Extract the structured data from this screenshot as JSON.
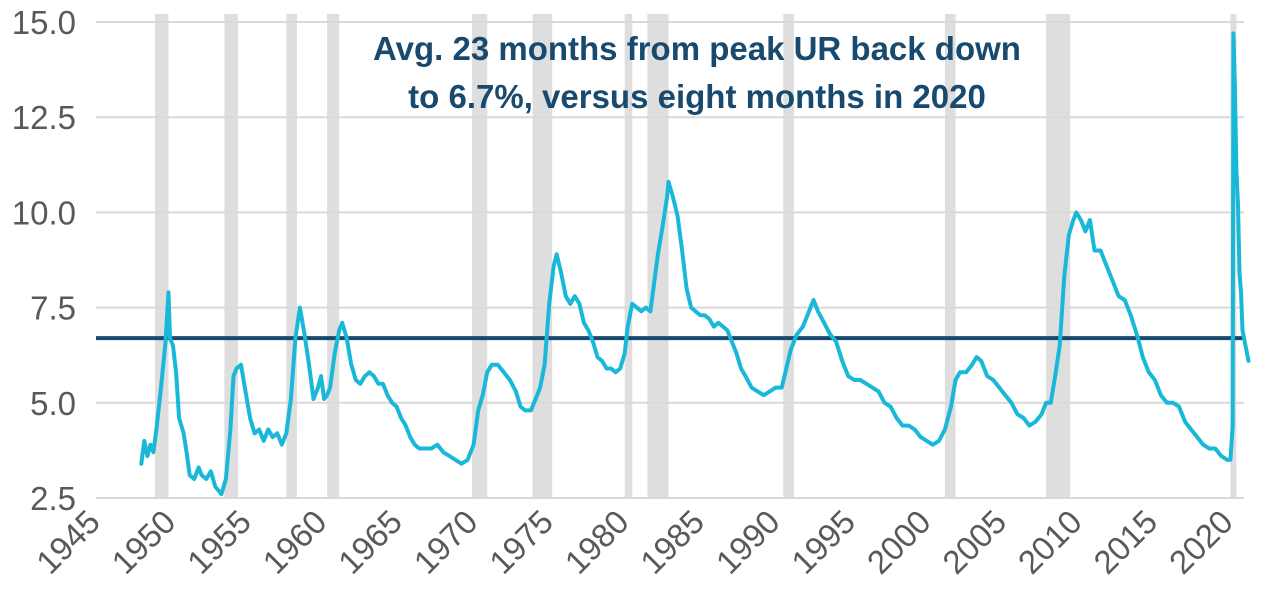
{
  "chart_data": {
    "type": "line",
    "title": "",
    "xlabel": "",
    "ylabel": "",
    "annotation": {
      "line1": "Avg. 23 months from peak UR back down",
      "line2": "to 6.7%, versus eight months in 2020"
    },
    "xlim": [
      1945,
      2021
    ],
    "ylim": [
      2.5,
      15.0
    ],
    "x_ticks": [
      "1945",
      "1950",
      "1955",
      "1960",
      "1965",
      "1970",
      "1975",
      "1980",
      "1985",
      "1990",
      "1995",
      "2000",
      "2005",
      "2010",
      "2015",
      "2020"
    ],
    "y_ticks": [
      "2.5",
      "5.0",
      "7.5",
      "10.0",
      "12.5",
      "15.0"
    ],
    "grid": "horizontal",
    "reference_line": {
      "value": 6.7,
      "color": "#174a6e"
    },
    "recessions": [
      [
        1948.9,
        1949.8
      ],
      [
        1953.5,
        1954.4
      ],
      [
        1957.6,
        1958.3
      ],
      [
        1960.3,
        1961.1
      ],
      [
        1969.9,
        1970.9
      ],
      [
        1973.9,
        1975.2
      ],
      [
        1980.0,
        1980.5
      ],
      [
        1981.5,
        1982.9
      ],
      [
        1990.5,
        1991.2
      ],
      [
        2001.2,
        2001.9
      ],
      [
        2007.9,
        2009.5
      ],
      [
        2020.1,
        2020.4
      ]
    ],
    "series": [
      {
        "color": "#1ab8d8",
        "points": [
          [
            1948.0,
            3.4
          ],
          [
            1948.2,
            4.0
          ],
          [
            1948.4,
            3.6
          ],
          [
            1948.6,
            3.9
          ],
          [
            1948.8,
            3.7
          ],
          [
            1949.0,
            4.3
          ],
          [
            1949.3,
            5.4
          ],
          [
            1949.6,
            6.6
          ],
          [
            1949.8,
            7.9
          ],
          [
            1949.9,
            6.7
          ],
          [
            1950.1,
            6.5
          ],
          [
            1950.3,
            5.8
          ],
          [
            1950.5,
            4.6
          ],
          [
            1950.8,
            4.2
          ],
          [
            1951.0,
            3.7
          ],
          [
            1951.2,
            3.1
          ],
          [
            1951.5,
            3.0
          ],
          [
            1951.8,
            3.3
          ],
          [
            1952.0,
            3.1
          ],
          [
            1952.3,
            3.0
          ],
          [
            1952.6,
            3.2
          ],
          [
            1952.9,
            2.8
          ],
          [
            1953.1,
            2.7
          ],
          [
            1953.3,
            2.6
          ],
          [
            1953.6,
            3.0
          ],
          [
            1953.9,
            4.3
          ],
          [
            1954.1,
            5.7
          ],
          [
            1954.3,
            5.9
          ],
          [
            1954.6,
            6.0
          ],
          [
            1954.9,
            5.3
          ],
          [
            1955.2,
            4.6
          ],
          [
            1955.5,
            4.2
          ],
          [
            1955.8,
            4.3
          ],
          [
            1956.1,
            4.0
          ],
          [
            1956.4,
            4.3
          ],
          [
            1956.7,
            4.1
          ],
          [
            1957.0,
            4.2
          ],
          [
            1957.3,
            3.9
          ],
          [
            1957.6,
            4.2
          ],
          [
            1957.9,
            5.1
          ],
          [
            1958.2,
            6.7
          ],
          [
            1958.5,
            7.5
          ],
          [
            1958.8,
            6.8
          ],
          [
            1959.1,
            6.0
          ],
          [
            1959.4,
            5.1
          ],
          [
            1959.7,
            5.4
          ],
          [
            1959.9,
            5.7
          ],
          [
            1960.1,
            5.1
          ],
          [
            1960.3,
            5.2
          ],
          [
            1960.5,
            5.4
          ],
          [
            1960.8,
            6.3
          ],
          [
            1961.1,
            6.9
          ],
          [
            1961.3,
            7.1
          ],
          [
            1961.6,
            6.7
          ],
          [
            1961.9,
            6.0
          ],
          [
            1962.2,
            5.6
          ],
          [
            1962.5,
            5.5
          ],
          [
            1962.8,
            5.7
          ],
          [
            1963.1,
            5.8
          ],
          [
            1963.4,
            5.7
          ],
          [
            1963.7,
            5.5
          ],
          [
            1964.0,
            5.5
          ],
          [
            1964.3,
            5.2
          ],
          [
            1964.6,
            5.0
          ],
          [
            1964.9,
            4.9
          ],
          [
            1965.2,
            4.6
          ],
          [
            1965.5,
            4.4
          ],
          [
            1965.8,
            4.1
          ],
          [
            1966.1,
            3.9
          ],
          [
            1966.4,
            3.8
          ],
          [
            1966.8,
            3.8
          ],
          [
            1967.2,
            3.8
          ],
          [
            1967.6,
            3.9
          ],
          [
            1968.0,
            3.7
          ],
          [
            1968.4,
            3.6
          ],
          [
            1968.8,
            3.5
          ],
          [
            1969.2,
            3.4
          ],
          [
            1969.6,
            3.5
          ],
          [
            1970.0,
            3.9
          ],
          [
            1970.3,
            4.8
          ],
          [
            1970.6,
            5.2
          ],
          [
            1970.9,
            5.8
          ],
          [
            1971.2,
            6.0
          ],
          [
            1971.6,
            6.0
          ],
          [
            1972.0,
            5.8
          ],
          [
            1972.4,
            5.6
          ],
          [
            1972.8,
            5.3
          ],
          [
            1973.1,
            4.9
          ],
          [
            1973.4,
            4.8
          ],
          [
            1973.8,
            4.8
          ],
          [
            1974.1,
            5.1
          ],
          [
            1974.4,
            5.4
          ],
          [
            1974.7,
            6.0
          ],
          [
            1975.0,
            7.6
          ],
          [
            1975.3,
            8.6
          ],
          [
            1975.5,
            8.9
          ],
          [
            1975.8,
            8.4
          ],
          [
            1976.1,
            7.8
          ],
          [
            1976.4,
            7.6
          ],
          [
            1976.7,
            7.8
          ],
          [
            1977.0,
            7.6
          ],
          [
            1977.3,
            7.1
          ],
          [
            1977.6,
            6.9
          ],
          [
            1977.9,
            6.6
          ],
          [
            1978.2,
            6.2
          ],
          [
            1978.5,
            6.1
          ],
          [
            1978.8,
            5.9
          ],
          [
            1979.1,
            5.9
          ],
          [
            1979.4,
            5.8
          ],
          [
            1979.7,
            5.9
          ],
          [
            1980.0,
            6.3
          ],
          [
            1980.2,
            7.0
          ],
          [
            1980.5,
            7.6
          ],
          [
            1980.8,
            7.5
          ],
          [
            1981.1,
            7.4
          ],
          [
            1981.4,
            7.5
          ],
          [
            1981.7,
            7.4
          ],
          [
            1981.9,
            8.0
          ],
          [
            1982.2,
            8.9
          ],
          [
            1982.5,
            9.6
          ],
          [
            1982.8,
            10.4
          ],
          [
            1982.9,
            10.8
          ],
          [
            1983.2,
            10.4
          ],
          [
            1983.5,
            9.9
          ],
          [
            1983.8,
            9.0
          ],
          [
            1984.1,
            8.0
          ],
          [
            1984.4,
            7.5
          ],
          [
            1984.7,
            7.4
          ],
          [
            1985.0,
            7.3
          ],
          [
            1985.3,
            7.3
          ],
          [
            1985.6,
            7.2
          ],
          [
            1985.9,
            7.0
          ],
          [
            1986.2,
            7.1
          ],
          [
            1986.5,
            7.0
          ],
          [
            1986.8,
            6.9
          ],
          [
            1987.1,
            6.6
          ],
          [
            1987.4,
            6.3
          ],
          [
            1987.7,
            5.9
          ],
          [
            1988.0,
            5.7
          ],
          [
            1988.4,
            5.4
          ],
          [
            1988.8,
            5.3
          ],
          [
            1989.2,
            5.2
          ],
          [
            1989.6,
            5.3
          ],
          [
            1990.0,
            5.4
          ],
          [
            1990.4,
            5.4
          ],
          [
            1990.7,
            5.9
          ],
          [
            1991.0,
            6.4
          ],
          [
            1991.4,
            6.8
          ],
          [
            1991.8,
            7.0
          ],
          [
            1992.2,
            7.4
          ],
          [
            1992.5,
            7.7
          ],
          [
            1992.8,
            7.4
          ],
          [
            1993.2,
            7.1
          ],
          [
            1993.6,
            6.8
          ],
          [
            1994.0,
            6.6
          ],
          [
            1994.4,
            6.1
          ],
          [
            1994.8,
            5.7
          ],
          [
            1995.2,
            5.6
          ],
          [
            1995.6,
            5.6
          ],
          [
            1996.0,
            5.5
          ],
          [
            1996.4,
            5.4
          ],
          [
            1996.8,
            5.3
          ],
          [
            1997.2,
            5.0
          ],
          [
            1997.6,
            4.9
          ],
          [
            1998.0,
            4.6
          ],
          [
            1998.4,
            4.4
          ],
          [
            1998.8,
            4.4
          ],
          [
            1999.2,
            4.3
          ],
          [
            1999.6,
            4.1
          ],
          [
            2000.0,
            4.0
          ],
          [
            2000.4,
            3.9
          ],
          [
            2000.8,
            4.0
          ],
          [
            2001.2,
            4.3
          ],
          [
            2001.6,
            4.9
          ],
          [
            2001.9,
            5.6
          ],
          [
            2002.2,
            5.8
          ],
          [
            2002.6,
            5.8
          ],
          [
            2003.0,
            6.0
          ],
          [
            2003.3,
            6.2
          ],
          [
            2003.6,
            6.1
          ],
          [
            2004.0,
            5.7
          ],
          [
            2004.4,
            5.6
          ],
          [
            2004.8,
            5.4
          ],
          [
            2005.2,
            5.2
          ],
          [
            2005.6,
            5.0
          ],
          [
            2006.0,
            4.7
          ],
          [
            2006.4,
            4.6
          ],
          [
            2006.8,
            4.4
          ],
          [
            2007.2,
            4.5
          ],
          [
            2007.6,
            4.7
          ],
          [
            2007.9,
            5.0
          ],
          [
            2008.2,
            5.0
          ],
          [
            2008.5,
            5.7
          ],
          [
            2008.8,
            6.5
          ],
          [
            2009.1,
            8.3
          ],
          [
            2009.4,
            9.4
          ],
          [
            2009.7,
            9.8
          ],
          [
            2009.9,
            10.0
          ],
          [
            2010.2,
            9.8
          ],
          [
            2010.5,
            9.5
          ],
          [
            2010.8,
            9.8
          ],
          [
            2011.1,
            9.0
          ],
          [
            2011.5,
            9.0
          ],
          [
            2011.9,
            8.6
          ],
          [
            2012.3,
            8.2
          ],
          [
            2012.7,
            7.8
          ],
          [
            2013.1,
            7.7
          ],
          [
            2013.5,
            7.3
          ],
          [
            2013.9,
            6.8
          ],
          [
            2014.3,
            6.2
          ],
          [
            2014.7,
            5.8
          ],
          [
            2015.1,
            5.6
          ],
          [
            2015.5,
            5.2
          ],
          [
            2015.9,
            5.0
          ],
          [
            2016.3,
            5.0
          ],
          [
            2016.7,
            4.9
          ],
          [
            2017.1,
            4.5
          ],
          [
            2017.5,
            4.3
          ],
          [
            2017.9,
            4.1
          ],
          [
            2018.3,
            3.9
          ],
          [
            2018.7,
            3.8
          ],
          [
            2019.1,
            3.8
          ],
          [
            2019.5,
            3.6
          ],
          [
            2019.9,
            3.5
          ],
          [
            2020.1,
            3.5
          ],
          [
            2020.25,
            4.4
          ],
          [
            2020.3,
            14.7
          ],
          [
            2020.4,
            13.3
          ],
          [
            2020.5,
            11.1
          ],
          [
            2020.6,
            10.2
          ],
          [
            2020.7,
            8.4
          ],
          [
            2020.8,
            7.9
          ],
          [
            2020.9,
            6.9
          ],
          [
            2021.0,
            6.7
          ],
          [
            2021.2,
            6.3
          ],
          [
            2021.3,
            6.1
          ]
        ]
      }
    ]
  }
}
